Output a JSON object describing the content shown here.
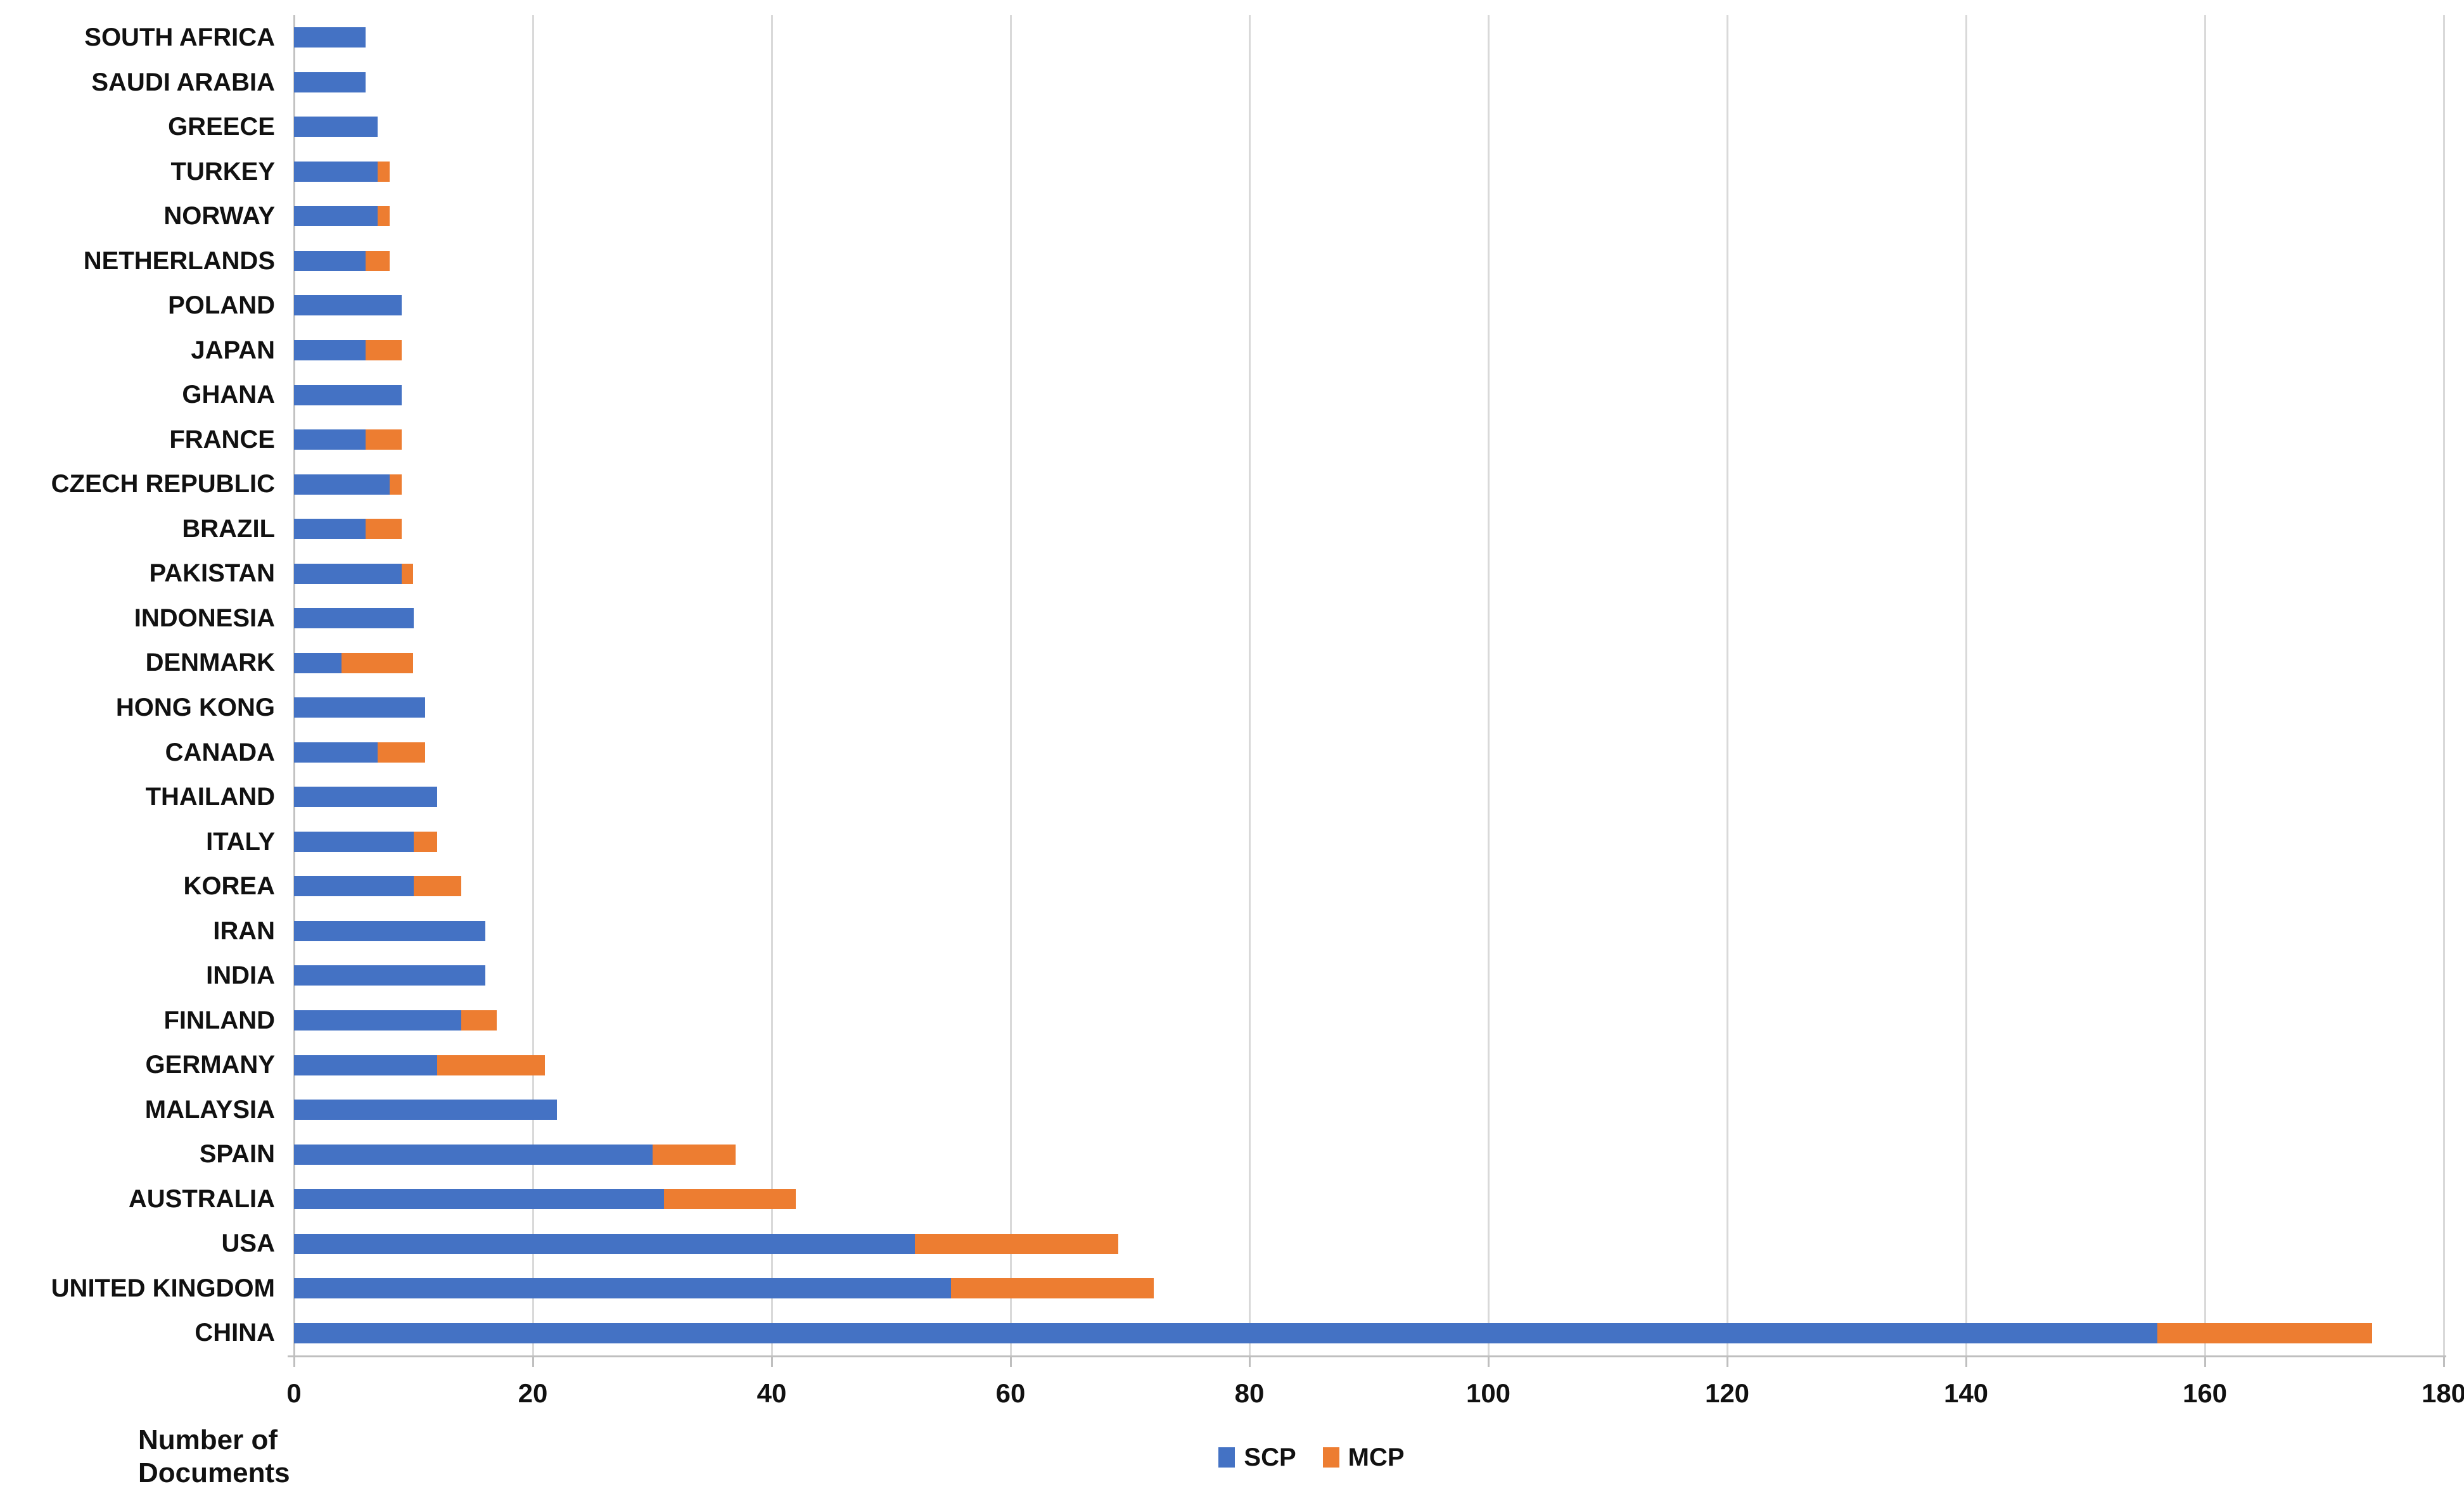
{
  "chart_data": {
    "type": "bar",
    "orientation": "horizontal",
    "stacked": true,
    "title": "",
    "xlabel": "Number of Documents",
    "ylabel": "",
    "xlim": [
      0,
      180
    ],
    "ticks": [
      0,
      20,
      40,
      60,
      80,
      100,
      120,
      140,
      160,
      180
    ],
    "grid": true,
    "legend_position": "bottom-center",
    "categories": [
      "SOUTH AFRICA",
      "SAUDI ARABIA",
      "GREECE",
      "TURKEY",
      "NORWAY",
      "NETHERLANDS",
      "POLAND",
      "JAPAN",
      "GHANA",
      "FRANCE",
      "CZECH REPUBLIC",
      "BRAZIL",
      "PAKISTAN",
      "INDONESIA",
      "DENMARK",
      "HONG KONG",
      "CANADA",
      "THAILAND",
      "ITALY",
      "KOREA",
      "IRAN",
      "INDIA",
      "FINLAND",
      "GERMANY",
      "MALAYSIA",
      "SPAIN",
      "AUSTRALIA",
      "USA",
      "UNITED KINGDOM",
      "CHINA"
    ],
    "series": [
      {
        "name": "SCP",
        "color": "#4472C4",
        "values": [
          6,
          6,
          7,
          7,
          7,
          6,
          9,
          6,
          9,
          6,
          8,
          6,
          9,
          10,
          4,
          11,
          7,
          12,
          10,
          10,
          16,
          16,
          14,
          12,
          22,
          30,
          31,
          52,
          55,
          156
        ]
      },
      {
        "name": "MCP",
        "color": "#ED7D31",
        "values": [
          0,
          0,
          0,
          1,
          1,
          2,
          0,
          3,
          0,
          3,
          1,
          3,
          1,
          0,
          6,
          0,
          4,
          0,
          2,
          4,
          0,
          0,
          3,
          9,
          0,
          7,
          11,
          17,
          17,
          18
        ]
      }
    ]
  },
  "axis_title": "Number of Documents",
  "legend": {
    "items": [
      {
        "label": "SCP",
        "color": "#4472C4"
      },
      {
        "label": "MCP",
        "color": "#ED7D31"
      }
    ]
  },
  "colors": {
    "scp": "#4472C4",
    "mcp": "#ED7D31",
    "gridline": "#D9D9D9",
    "axis_line": "#BFBFBF",
    "text": "#111111"
  }
}
